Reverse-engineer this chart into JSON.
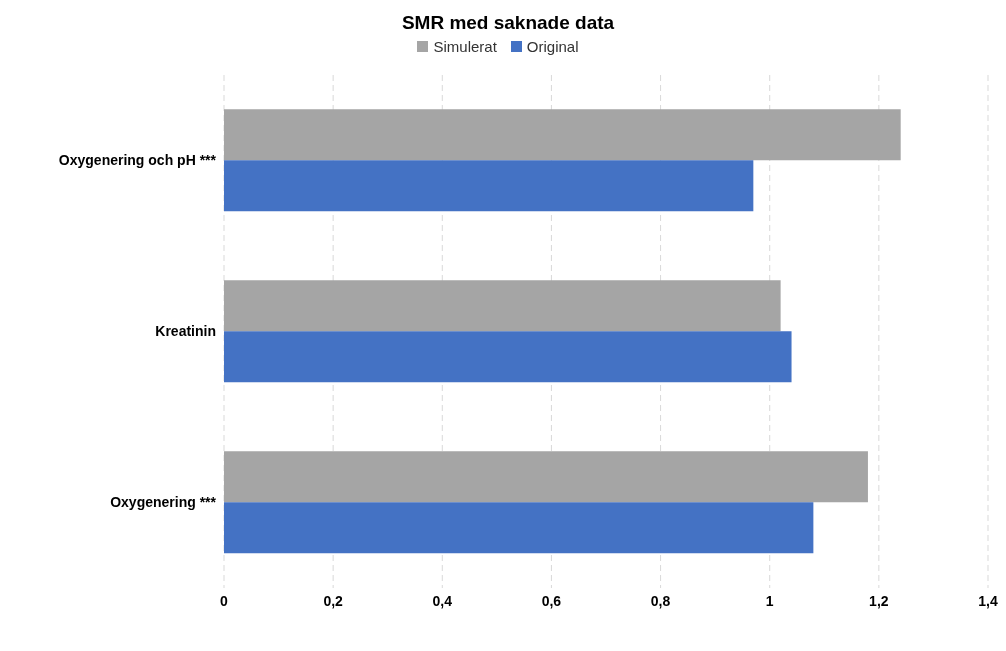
{
  "chart_data": {
    "type": "bar",
    "orientation": "horizontal",
    "title": "SMR med saknade data",
    "categories": [
      "Oxygenering och pH ***",
      "Kreatinin",
      "Oxygenering ***"
    ],
    "series": [
      {
        "name": "Simulerat",
        "color": "#a5a5a5",
        "values": [
          1.24,
          1.02,
          1.18
        ]
      },
      {
        "name": "Original",
        "color": "#4472c4",
        "values": [
          0.97,
          1.04,
          1.08
        ]
      }
    ],
    "xlim": [
      0,
      1.4
    ],
    "xticks": [
      0,
      {
        "value": 0.2,
        "label": "0,2"
      },
      {
        "value": 0.4,
        "label": "0,4"
      },
      {
        "value": 0.6,
        "label": "0,6"
      },
      {
        "value": 0.8,
        "label": "0,8"
      },
      1,
      {
        "value": 1.2,
        "label": "1,2"
      },
      {
        "value": 1.4,
        "label": "1,4"
      }
    ],
    "grid": "x",
    "legend": "top"
  }
}
